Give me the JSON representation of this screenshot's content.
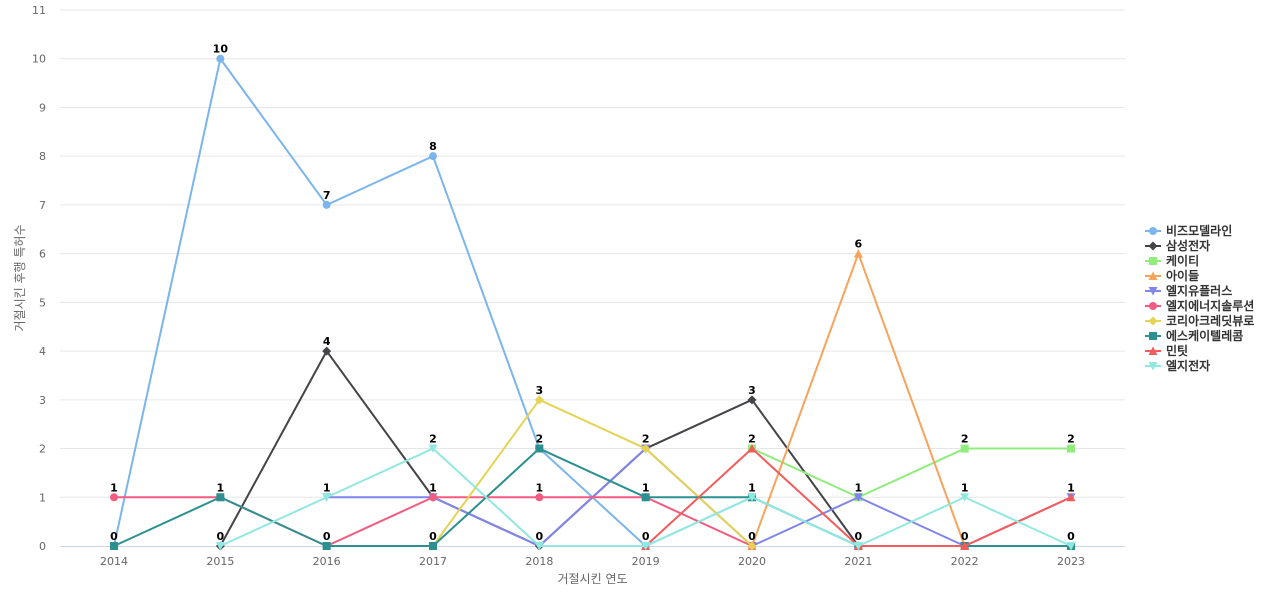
{
  "chart_data": {
    "type": "line",
    "title": "",
    "xlabel": "거절시킨 연도",
    "ylabel": "거절시킨 후행 특허수",
    "ylim": [
      0,
      11
    ],
    "yticks": [
      0,
      1,
      2,
      3,
      4,
      5,
      6,
      7,
      8,
      9,
      10,
      11
    ],
    "grid": true,
    "legend_position": "right",
    "categories": [
      "2014",
      "2015",
      "2016",
      "2017",
      "2018",
      "2019",
      "2020",
      "2021",
      "2022",
      "2023"
    ],
    "series": [
      {
        "name": "비즈모델라인",
        "color": "#7cb5ec",
        "marker": "circle",
        "values": [
          0,
          10,
          7,
          8,
          2,
          0,
          1,
          0,
          null,
          null
        ]
      },
      {
        "name": "삼성전자",
        "color": "#434348",
        "marker": "diamond",
        "values": [
          null,
          0,
          4,
          1,
          0,
          2,
          3,
          0,
          null,
          null
        ]
      },
      {
        "name": "케이티",
        "color": "#90ed7d",
        "marker": "square",
        "values": [
          null,
          null,
          null,
          null,
          null,
          null,
          2,
          1,
          2,
          2
        ]
      },
      {
        "name": "아이들",
        "color": "#f7a35c",
        "marker": "triangle",
        "values": [
          null,
          null,
          null,
          null,
          null,
          null,
          0,
          6,
          0,
          null
        ]
      },
      {
        "name": "엘지유플러스",
        "color": "#8085e9",
        "marker": "triangle-down",
        "values": [
          null,
          null,
          1,
          1,
          0,
          2,
          0,
          1,
          0,
          1
        ]
      },
      {
        "name": "엘지에너지솔루션",
        "color": "#f15c80",
        "marker": "circle",
        "values": [
          1,
          1,
          0,
          1,
          1,
          1,
          0,
          null,
          null,
          null
        ]
      },
      {
        "name": "코리아크레딧뷰로",
        "color": "#e4d354",
        "marker": "diamond",
        "values": [
          null,
          null,
          null,
          0,
          3,
          2,
          0,
          null,
          null,
          null
        ]
      },
      {
        "name": "에스케이텔레콤",
        "color": "#2b908f",
        "marker": "square",
        "values": [
          0,
          1,
          0,
          0,
          2,
          1,
          1,
          0,
          0,
          0
        ]
      },
      {
        "name": "민팃",
        "color": "#f45b5b",
        "marker": "triangle",
        "values": [
          null,
          null,
          null,
          null,
          null,
          0,
          2,
          0,
          0,
          1
        ]
      },
      {
        "name": "엘지전자",
        "color": "#91e8e1",
        "marker": "triangle-down",
        "values": [
          null,
          0,
          1,
          2,
          0,
          0,
          1,
          0,
          1,
          0
        ]
      }
    ],
    "data_labels": [
      {
        "x": "2014",
        "y": 1,
        "text": "1"
      },
      {
        "x": "2014",
        "y": 0,
        "text": "0"
      },
      {
        "x": "2015",
        "y": 10,
        "text": "10"
      },
      {
        "x": "2015",
        "y": 1,
        "text": "1"
      },
      {
        "x": "2015",
        "y": 0,
        "text": "0"
      },
      {
        "x": "2016",
        "y": 7,
        "text": "7"
      },
      {
        "x": "2016",
        "y": 4,
        "text": "4"
      },
      {
        "x": "2016",
        "y": 1,
        "text": "1"
      },
      {
        "x": "2016",
        "y": 0,
        "text": "0"
      },
      {
        "x": "2017",
        "y": 8,
        "text": "8"
      },
      {
        "x": "2017",
        "y": 2,
        "text": "2"
      },
      {
        "x": "2017",
        "y": 1,
        "text": "1"
      },
      {
        "x": "2017",
        "y": 0,
        "text": "0"
      },
      {
        "x": "2018",
        "y": 3,
        "text": "3"
      },
      {
        "x": "2018",
        "y": 2,
        "text": "2"
      },
      {
        "x": "2018",
        "y": 1,
        "text": "1"
      },
      {
        "x": "2018",
        "y": 0,
        "text": "0"
      },
      {
        "x": "2019",
        "y": 2,
        "text": "2"
      },
      {
        "x": "2019",
        "y": 1,
        "text": "1"
      },
      {
        "x": "2019",
        "y": 0,
        "text": "0"
      },
      {
        "x": "2020",
        "y": 3,
        "text": "3"
      },
      {
        "x": "2020",
        "y": 2,
        "text": "2"
      },
      {
        "x": "2020",
        "y": 1,
        "text": "1"
      },
      {
        "x": "2020",
        "y": 0,
        "text": "0"
      },
      {
        "x": "2021",
        "y": 6,
        "text": "6"
      },
      {
        "x": "2021",
        "y": 1,
        "text": "1"
      },
      {
        "x": "2021",
        "y": 0,
        "text": "0"
      },
      {
        "x": "2022",
        "y": 2,
        "text": "2"
      },
      {
        "x": "2022",
        "y": 1,
        "text": "1"
      },
      {
        "x": "2022",
        "y": 0,
        "text": "0"
      },
      {
        "x": "2023",
        "y": 2,
        "text": "2"
      },
      {
        "x": "2023",
        "y": 1,
        "text": "1"
      },
      {
        "x": "2023",
        "y": 0,
        "text": "0"
      }
    ]
  }
}
